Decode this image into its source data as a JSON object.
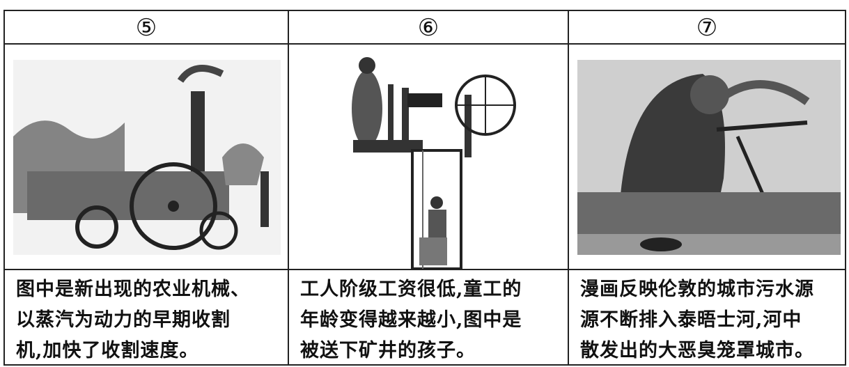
{
  "table": {
    "headers": [
      "⑤",
      "⑥",
      "⑦"
    ],
    "captions": [
      [
        "图中是新出现的农业机械、",
        "以蒸汽为动力的早期收割",
        "机,加快了收割速度。"
      ],
      [
        "工人阶级工资很低,童工的",
        "年龄变得越来越小,图中是",
        "被送下矿井的孩子。"
      ],
      [
        "漫画反映伦敦的城市污水源",
        "源不断排入泰晤士河,河中",
        "散发出的大恶臭笼罩城市。"
      ]
    ]
  }
}
